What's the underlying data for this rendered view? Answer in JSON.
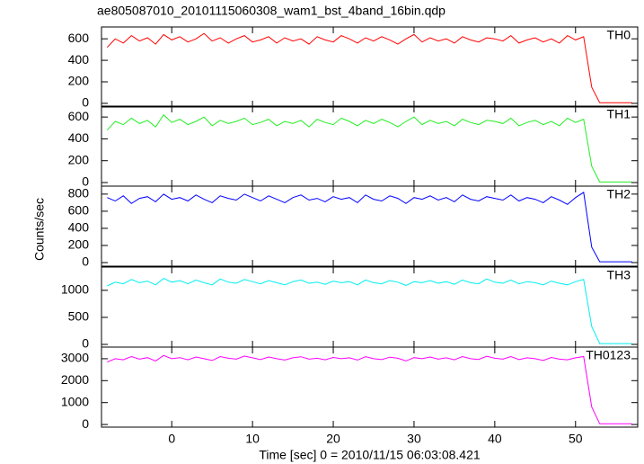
{
  "chart_data": [
    {
      "type": "line",
      "title": "ae805087010_20101115060308_wam1_bst_4band_16bin.qdp",
      "x": [
        -8,
        -7,
        -6,
        -5,
        -4,
        -3,
        -2,
        -1,
        0,
        1,
        2,
        3,
        4,
        5,
        6,
        7,
        8,
        9,
        10,
        11,
        12,
        13,
        14,
        15,
        16,
        17,
        18,
        19,
        20,
        21,
        22,
        23,
        24,
        25,
        26,
        27,
        28,
        29,
        30,
        31,
        32,
        33,
        34,
        35,
        36,
        37,
        38,
        39,
        40,
        41,
        42,
        43,
        44,
        45,
        46,
        47,
        48,
        49,
        50,
        51,
        52,
        53,
        54,
        55,
        56,
        57
      ],
      "series": [
        {
          "name": "TH0",
          "color": "#ff0000",
          "values": [
            520,
            600,
            560,
            630,
            580,
            610,
            550,
            640,
            590,
            620,
            570,
            600,
            650,
            580,
            610,
            560,
            600,
            630,
            570,
            590,
            620,
            560,
            610,
            580,
            600,
            550,
            620,
            590,
            570,
            630,
            600,
            560,
            610,
            580,
            620,
            590,
            550,
            600,
            640,
            570,
            610,
            580,
            600,
            560,
            620,
            590,
            570,
            610,
            600,
            580,
            630,
            560,
            590,
            610,
            570,
            600,
            560,
            630,
            590,
            620,
            150,
            5,
            5,
            5,
            5,
            5
          ]
        }
      ],
      "xlim": [
        -8.7,
        57.7
      ],
      "xticks": [
        0,
        10,
        20,
        30,
        40,
        50
      ],
      "ylim": [
        -34,
        710
      ],
      "yticks": [
        0,
        200,
        400,
        600
      ]
    },
    {
      "type": "line",
      "x": [
        -8,
        -7,
        -6,
        -5,
        -4,
        -3,
        -2,
        -1,
        0,
        1,
        2,
        3,
        4,
        5,
        6,
        7,
        8,
        9,
        10,
        11,
        12,
        13,
        14,
        15,
        16,
        17,
        18,
        19,
        20,
        21,
        22,
        23,
        24,
        25,
        26,
        27,
        28,
        29,
        30,
        31,
        32,
        33,
        34,
        35,
        36,
        37,
        38,
        39,
        40,
        41,
        42,
        43,
        44,
        45,
        46,
        47,
        48,
        49,
        50,
        51,
        52,
        53,
        54,
        55,
        56,
        57
      ],
      "series": [
        {
          "name": "TH1",
          "color": "#22ee22",
          "values": [
            480,
            560,
            530,
            590,
            540,
            570,
            510,
            620,
            550,
            580,
            530,
            560,
            600,
            520,
            570,
            540,
            560,
            590,
            530,
            550,
            580,
            520,
            560,
            540,
            570,
            510,
            580,
            550,
            530,
            590,
            560,
            520,
            570,
            540,
            580,
            550,
            510,
            560,
            600,
            530,
            570,
            540,
            560,
            520,
            580,
            550,
            530,
            570,
            560,
            540,
            590,
            520,
            550,
            570,
            530,
            560,
            520,
            590,
            550,
            580,
            150,
            5,
            5,
            5,
            5,
            5
          ]
        }
      ],
      "xlim": [
        -8.7,
        57.7
      ],
      "xticks": [
        0,
        10,
        20,
        30,
        40,
        50
      ],
      "ylim": [
        -33,
        700
      ],
      "yticks": [
        0,
        200,
        400,
        600
      ]
    },
    {
      "type": "line",
      "y_label": "Counts/sec",
      "x": [
        -8,
        -7,
        -6,
        -5,
        -4,
        -3,
        -2,
        -1,
        0,
        1,
        2,
        3,
        4,
        5,
        6,
        7,
        8,
        9,
        10,
        11,
        12,
        13,
        14,
        15,
        16,
        17,
        18,
        19,
        20,
        21,
        22,
        23,
        24,
        25,
        26,
        27,
        28,
        29,
        30,
        31,
        32,
        33,
        34,
        35,
        36,
        37,
        38,
        39,
        40,
        41,
        42,
        43,
        44,
        45,
        46,
        47,
        48,
        49,
        50,
        51,
        52,
        53,
        54,
        55,
        56,
        57
      ],
      "series": [
        {
          "name": "TH2",
          "color": "#0000ff",
          "values": [
            760,
            720,
            780,
            690,
            750,
            770,
            710,
            800,
            740,
            760,
            720,
            790,
            740,
            700,
            780,
            750,
            730,
            800,
            760,
            720,
            780,
            740,
            700,
            760,
            790,
            730,
            750,
            710,
            770,
            740,
            760,
            700,
            790,
            740,
            720,
            780,
            750,
            690,
            760,
            740,
            780,
            730,
            760,
            710,
            790,
            740,
            720,
            770,
            750,
            730,
            790,
            720,
            760,
            740,
            700,
            770,
            730,
            680,
            760,
            820,
            180,
            10,
            10,
            10,
            10,
            10
          ]
        }
      ],
      "xlim": [
        -8.7,
        57.7
      ],
      "xticks": [
        0,
        10,
        20,
        30,
        40,
        50
      ],
      "ylim": [
        -42,
        893
      ],
      "yticks": [
        0,
        200,
        400,
        600,
        800
      ]
    },
    {
      "type": "line",
      "x": [
        -8,
        -7,
        -6,
        -5,
        -4,
        -3,
        -2,
        -1,
        0,
        1,
        2,
        3,
        4,
        5,
        6,
        7,
        8,
        9,
        10,
        11,
        12,
        13,
        14,
        15,
        16,
        17,
        18,
        19,
        20,
        21,
        22,
        23,
        24,
        25,
        26,
        27,
        28,
        29,
        30,
        31,
        32,
        33,
        34,
        35,
        36,
        37,
        38,
        39,
        40,
        41,
        42,
        43,
        44,
        45,
        46,
        47,
        48,
        49,
        50,
        51,
        52,
        53,
        54,
        55,
        56,
        57
      ],
      "series": [
        {
          "name": "TH3",
          "color": "#00eeee",
          "values": [
            1080,
            1150,
            1120,
            1200,
            1140,
            1170,
            1100,
            1220,
            1150,
            1180,
            1120,
            1190,
            1140,
            1100,
            1210,
            1150,
            1130,
            1200,
            1160,
            1120,
            1180,
            1140,
            1100,
            1160,
            1190,
            1130,
            1150,
            1110,
            1170,
            1140,
            1160,
            1100,
            1190,
            1140,
            1120,
            1180,
            1150,
            1090,
            1160,
            1140,
            1180,
            1130,
            1160,
            1110,
            1190,
            1140,
            1120,
            1210,
            1150,
            1130,
            1190,
            1120,
            1160,
            1140,
            1100,
            1170,
            1130,
            1100,
            1160,
            1200,
            330,
            15,
            15,
            15,
            15,
            15
          ]
        }
      ],
      "xlim": [
        -8.7,
        57.7
      ],
      "xticks": [
        0,
        10,
        20,
        30,
        40,
        50
      ],
      "ylim": [
        -50,
        1430
      ],
      "yticks": [
        0,
        500,
        1000
      ]
    },
    {
      "type": "line",
      "x_label": "Time [sec] 0 = 2010/11/15 06:03:08.421",
      "x": [
        -8,
        -7,
        -6,
        -5,
        -4,
        -3,
        -2,
        -1,
        0,
        1,
        2,
        3,
        4,
        5,
        6,
        7,
        8,
        9,
        10,
        11,
        12,
        13,
        14,
        15,
        16,
        17,
        18,
        19,
        20,
        21,
        22,
        23,
        24,
        25,
        26,
        27,
        28,
        29,
        30,
        31,
        32,
        33,
        34,
        35,
        36,
        37,
        38,
        39,
        40,
        41,
        42,
        43,
        44,
        45,
        46,
        47,
        48,
        49,
        50,
        51,
        52,
        53,
        54,
        55,
        56,
        57
      ],
      "series": [
        {
          "name": "TH0123",
          "color": "#ff00ff",
          "values": [
            2850,
            3000,
            2950,
            3100,
            2980,
            3050,
            2900,
            3150,
            3000,
            3050,
            2950,
            3080,
            3000,
            2920,
            3100,
            3020,
            2980,
            3120,
            3040,
            2960,
            3080,
            3000,
            2940,
            3040,
            3090,
            2980,
            3020,
            2950,
            3060,
            3000,
            3040,
            2940,
            3090,
            3000,
            2960,
            3070,
            3020,
            2900,
            3050,
            3000,
            3080,
            2980,
            3040,
            2950,
            3100,
            3000,
            2970,
            3110,
            3020,
            2980,
            3100,
            2960,
            3040,
            3000,
            2920,
            3060,
            2980,
            2950,
            3040,
            3100,
            800,
            30,
            30,
            30,
            30,
            30
          ]
        }
      ],
      "xlim": [
        -8.7,
        57.7
      ],
      "xticks": [
        0,
        10,
        20,
        30,
        40,
        50
      ],
      "ylim": [
        -120,
        3530
      ],
      "yticks": [
        0,
        1000,
        2000,
        3000
      ]
    }
  ]
}
